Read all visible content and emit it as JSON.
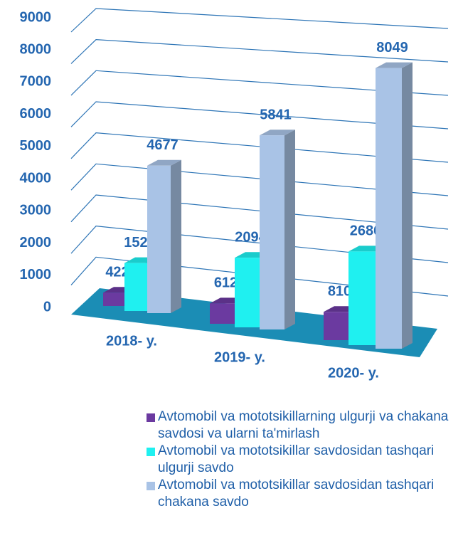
{
  "chart_data": {
    "type": "bar3d",
    "categories": [
      "2018- y.",
      "2019- y.",
      "2020- y."
    ],
    "series": [
      {
        "name": "Avtomobil va mototsikillarning ulgurji va chakana savdosi va ularni ta'mirlash",
        "color": "#6b3aa0",
        "values": [
          422,
          612,
          810
        ]
      },
      {
        "name": "Avtomobil va mototsikillar savdosidan tashqari ulgurji savdo",
        "color": "#1ff0f0",
        "values": [
          1520,
          2094,
          2686
        ]
      },
      {
        "name": "Avtomobil va mototsikillar savdosidan tashqari chakana savdo",
        "color": "#a9c3e6",
        "values": [
          4677,
          5841,
          8049
        ]
      }
    ],
    "ylim": [
      0,
      9000
    ],
    "yticks": [
      0,
      1000,
      2000,
      3000,
      4000,
      5000,
      6000,
      7000,
      8000,
      9000
    ],
    "grid": true
  }
}
